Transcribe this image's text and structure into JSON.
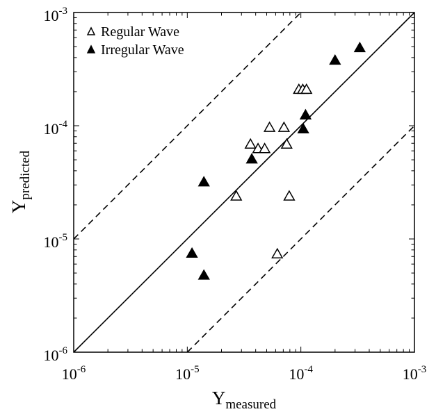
{
  "chart_data": {
    "type": "scatter",
    "xscale": "log",
    "yscale": "log",
    "xlim": [
      1e-06,
      0.001
    ],
    "ylim": [
      1e-06,
      0.001
    ],
    "x_ticks": [
      {
        "base": "10",
        "exp": "-6",
        "value": 1e-06
      },
      {
        "base": "10",
        "exp": "-5",
        "value": 1e-05
      },
      {
        "base": "10",
        "exp": "-4",
        "value": 0.0001
      },
      {
        "base": "10",
        "exp": "-3",
        "value": 0.001
      }
    ],
    "y_ticks": [
      {
        "base": "10",
        "exp": "-6",
        "value": 1e-06
      },
      {
        "base": "10",
        "exp": "-5",
        "value": 1e-05
      },
      {
        "base": "10",
        "exp": "-4",
        "value": 0.0001
      },
      {
        "base": "10",
        "exp": "-3",
        "value": 0.001
      }
    ],
    "xlabel": {
      "main": "Y",
      "sub": "measured"
    },
    "ylabel": {
      "main": "Y",
      "sub": "predicted"
    },
    "grid": false,
    "legend_position": "top-left",
    "series": [
      {
        "name": "Regular Wave",
        "marker": "triangle-open",
        "points": [
          {
            "x": 2.7e-05,
            "y": 2.4e-05
          },
          {
            "x": 3.6e-05,
            "y": 6.9e-05
          },
          {
            "x": 4.2e-05,
            "y": 6.3e-05
          },
          {
            "x": 4.8e-05,
            "y": 6.3e-05
          },
          {
            "x": 5.3e-05,
            "y": 9.7e-05
          },
          {
            "x": 6.2e-05,
            "y": 7.4e-06
          },
          {
            "x": 7.1e-05,
            "y": 9.7e-05
          },
          {
            "x": 7.5e-05,
            "y": 6.9e-05
          },
          {
            "x": 7.9e-05,
            "y": 2.4e-05
          },
          {
            "x": 9.6e-05,
            "y": 0.00021
          },
          {
            "x": 0.000104,
            "y": 0.00021
          },
          {
            "x": 0.000112,
            "y": 0.00021
          }
        ]
      },
      {
        "name": "Irregular Wave",
        "marker": "triangle-filled",
        "points": [
          {
            "x": 1.1e-05,
            "y": 7.5e-06
          },
          {
            "x": 1.4e-05,
            "y": 3.2e-05
          },
          {
            "x": 1.4e-05,
            "y": 4.8e-06
          },
          {
            "x": 3.7e-05,
            "y": 5.1e-05
          },
          {
            "x": 0.000105,
            "y": 9.4e-05
          },
          {
            "x": 0.00011,
            "y": 0.000125
          },
          {
            "x": 0.0002,
            "y": 0.00038
          },
          {
            "x": 0.00033,
            "y": 0.00049
          }
        ]
      }
    ],
    "reference_lines": [
      {
        "slope_factor": 1,
        "style": "solid"
      },
      {
        "slope_factor": 10,
        "style": "dashed"
      },
      {
        "slope_factor": 0.1,
        "style": "dashed"
      }
    ]
  }
}
